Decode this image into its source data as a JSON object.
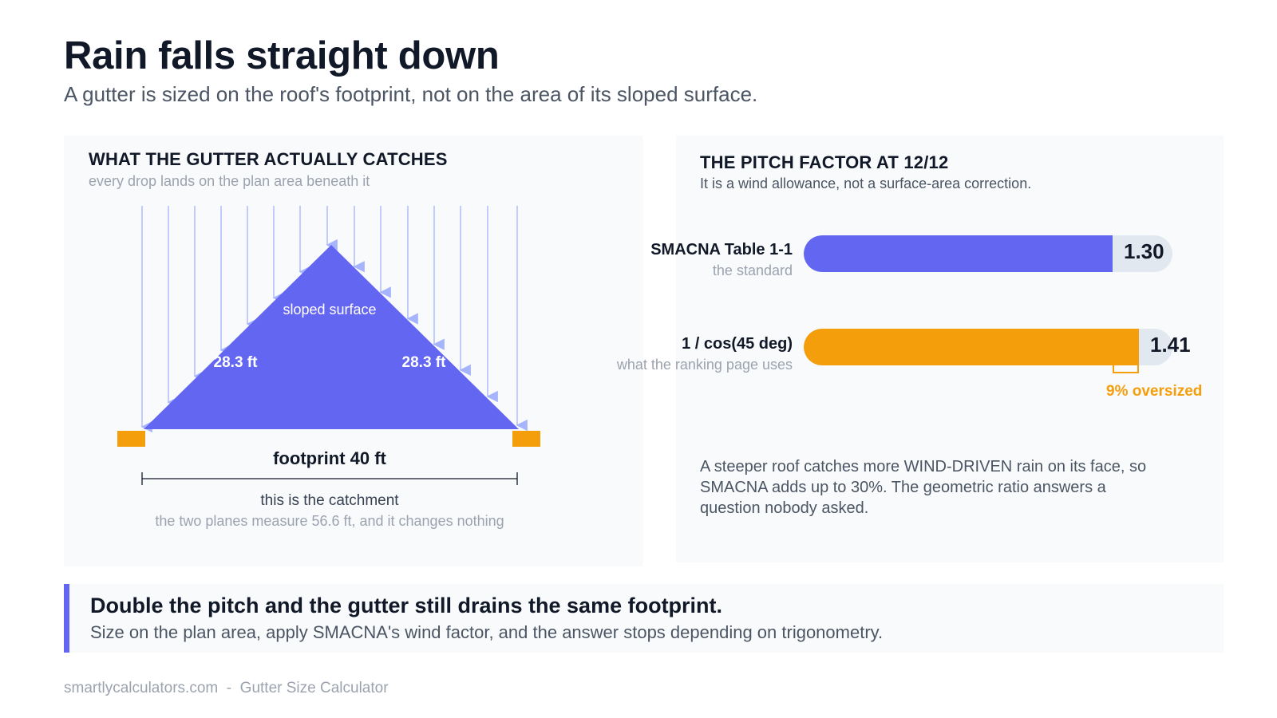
{
  "header": {
    "title": "Rain falls straight down",
    "subtitle": "A gutter is sized on the roof's footprint, not on the area of its sloped surface."
  },
  "left_panel": {
    "heading": "WHAT THE GUTTER ACTUALLY CATCHES",
    "subheading": "every drop lands on the plan area beneath it",
    "diagram": {
      "roof_label": "sloped surface",
      "left_slope_label": "28.3 ft",
      "right_slope_label": "28.3 ft",
      "footprint_label": "footprint 40 ft",
      "catchment_label": "this is the catchment",
      "catchment_note": "the two planes measure 56.6 ft, and it changes nothing",
      "colors": {
        "roof": "#6366f1",
        "rain": "#a5b4fc",
        "gutter": "#f59e0b",
        "dimension": "#111827"
      }
    }
  },
  "right_panel": {
    "heading": "THE PITCH FACTOR AT 12/12",
    "subheading": "It is a wind allowance, not a surface-area correction.",
    "bars": [
      {
        "name": "SMACNA Table 1-1",
        "note": "the standard",
        "value": 1.3,
        "display": "1.30",
        "color": "#6366f1"
      },
      {
        "name": "1 / cos(45 deg)",
        "note": "what the ranking page uses",
        "value": 1.41,
        "display": "1.41",
        "color": "#f59e0b"
      }
    ],
    "scale_max": 1.55,
    "oversize_label": "9% oversized",
    "body": "A steeper roof catches more WIND-DRIVEN rain on its face, so SMACNA adds up to 30%. The geometric ratio answers a question nobody asked."
  },
  "callout": {
    "headline": "Double the pitch and the gutter still drains the same footprint.",
    "body": "Size on the plan area, apply SMACNA's wind factor, and the answer stops depending on trigonometry.",
    "accent": "#6366f1"
  },
  "footer": {
    "site": "smartlycalculators.com",
    "separator": "-",
    "tool": "Gutter Size Calculator"
  }
}
